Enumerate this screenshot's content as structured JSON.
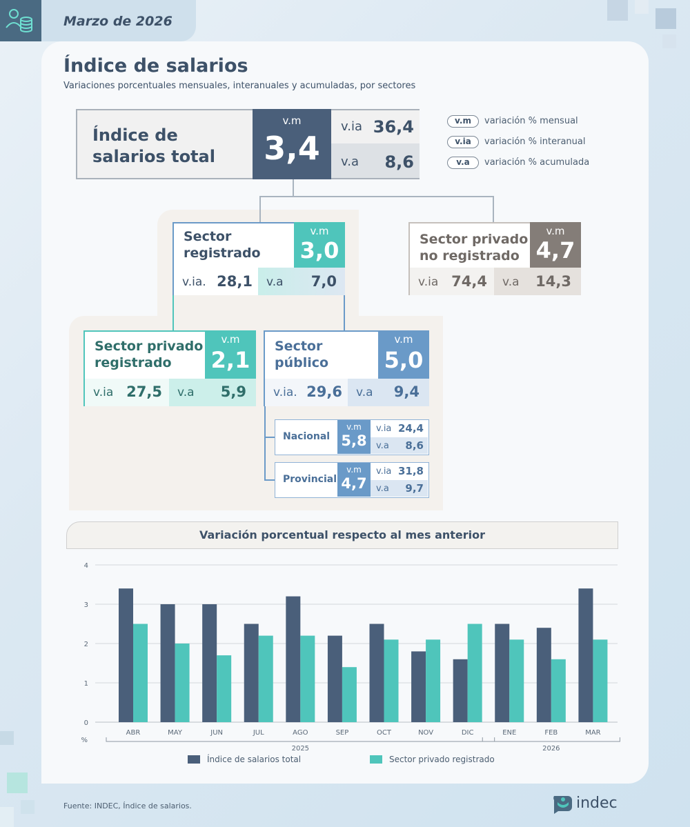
{
  "header": {
    "date": "Marzo de 2026",
    "icon": "coins-people-icon"
  },
  "title": "Índice de salarios",
  "subtitle": "Variaciones porcentuales mensuales, interanuales y acumuladas, por sectores",
  "colors": {
    "total": "#4a5f7a",
    "privado_registrado": "#4fc5bb",
    "publico": "#6a9ac8",
    "no_registrado": "#847d78"
  },
  "total": {
    "name_line1": "Índice de",
    "name_line2": "salarios total",
    "vm_label": "v.m",
    "vm": "3,4",
    "via_label": "v.ia",
    "via": "36,4",
    "va_label": "v.a",
    "va": "8,6"
  },
  "legend": [
    {
      "abbr": "v.m",
      "text": "variación % mensual"
    },
    {
      "abbr": "v.ia",
      "text": "variación % interanual"
    },
    {
      "abbr": "v.a",
      "text": "variación % acumulada"
    }
  ],
  "registrado": {
    "name_line1": "Sector",
    "name_line2": "registrado",
    "vm_label": "v.m",
    "vm": "3,0",
    "via_label": "v.ia.",
    "via": "28,1",
    "va_label": "v.a",
    "va": "7,0"
  },
  "no_registrado": {
    "name_line1": "Sector privado",
    "name_line2": "no registrado",
    "vm_label": "v.m",
    "vm": "4,7",
    "via_label": "v.ia",
    "via": "74,4",
    "va_label": "v.a",
    "va": "14,3"
  },
  "privado_registrado": {
    "name_line1": "Sector privado",
    "name_line2": "registrado",
    "vm_label": "v.m",
    "vm": "2,1",
    "via_label": "v.ia",
    "via": "27,5",
    "va_label": "v.a",
    "va": "5,9"
  },
  "publico": {
    "name_line1": "Sector",
    "name_line2": "público",
    "vm_label": "v.m",
    "vm": "5,0",
    "via_label": "v.ia.",
    "via": "29,6",
    "va_label": "v.a",
    "va": "9,4"
  },
  "nacional": {
    "name": "Nacional",
    "vm_label": "v.m",
    "vm": "5,8",
    "via_label": "v.ia",
    "via": "24,4",
    "va_label": "v.a",
    "va": "8,6"
  },
  "provincial": {
    "name": "Provincial",
    "vm_label": "v.m",
    "vm": "4,7",
    "via_label": "v.ia",
    "via": "31,8",
    "va_label": "v.a",
    "va": "9,7"
  },
  "chart_data": {
    "type": "bar",
    "title": "Variación porcentual respecto al mes anterior",
    "ylabel": "%",
    "ylim": [
      0,
      4
    ],
    "yticks": [
      "0",
      "1",
      "2",
      "3",
      "4"
    ],
    "categories": [
      "ABR",
      "MAY",
      "JUN",
      "JUL",
      "AGO",
      "SEP",
      "OCT",
      "NOV",
      "DIC",
      "ENE",
      "FEB",
      "MAR"
    ],
    "year_groups": [
      {
        "label": "2025",
        "from": 0,
        "to": 8
      },
      {
        "label": "2026",
        "from": 9,
        "to": 11
      }
    ],
    "series": [
      {
        "name": "Índice de salarios total",
        "color": "#4a5f7a",
        "values": [
          3.4,
          3.0,
          3.0,
          2.5,
          3.2,
          2.2,
          2.5,
          1.8,
          1.6,
          2.5,
          2.4,
          3.4
        ]
      },
      {
        "name": "Sector privado registrado",
        "color": "#4fc5bb",
        "values": [
          2.5,
          2.0,
          1.7,
          2.2,
          2.2,
          1.4,
          2.1,
          2.1,
          2.5,
          2.1,
          1.6,
          2.1
        ]
      }
    ],
    "grid": true,
    "legend_position": "bottom"
  },
  "source": "Fuente: INDEC, Índice de salarios.",
  "logo": "indec"
}
